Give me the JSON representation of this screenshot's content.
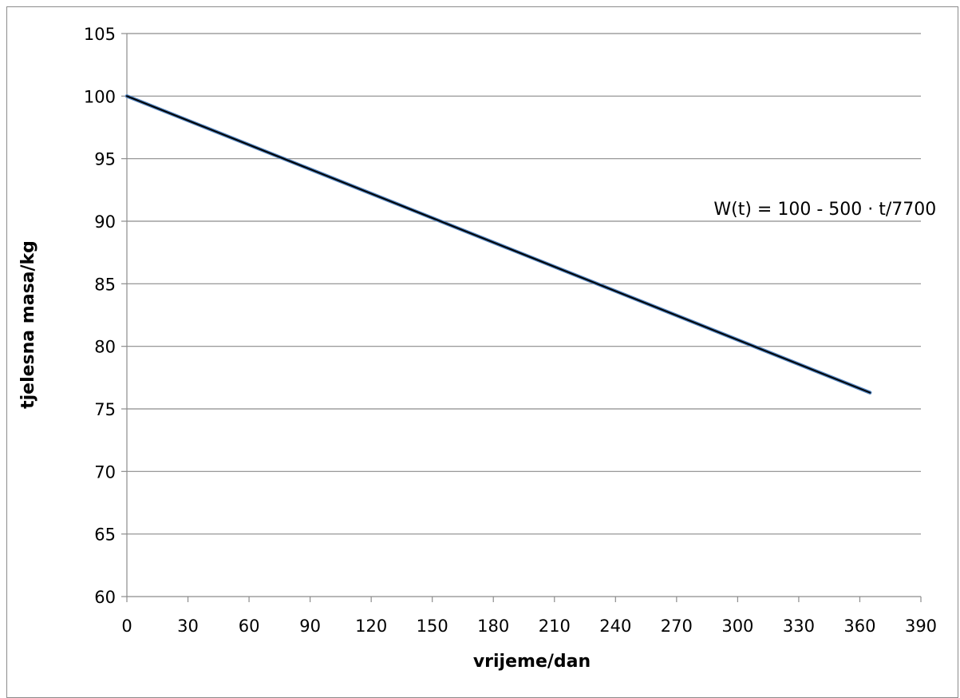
{
  "chart_data": {
    "type": "line",
    "title": "",
    "xlabel": "vrijeme/dan",
    "ylabel": "tjelesna masa/kg",
    "xlim": [
      0,
      390
    ],
    "ylim": [
      60,
      105
    ],
    "x_ticks": [
      0,
      30,
      60,
      90,
      120,
      150,
      180,
      210,
      240,
      270,
      300,
      330,
      360,
      390
    ],
    "y_ticks": [
      60,
      65,
      70,
      75,
      80,
      85,
      90,
      95,
      100,
      105
    ],
    "grid": "horizontal",
    "series": [
      {
        "x": [
          0,
          365
        ],
        "y": [
          100,
          76.3
        ],
        "color": "#000000",
        "outline_color": "#4f81bd"
      }
    ],
    "annotations": [
      {
        "text": "W(t) = 100 - 500 · t/7700",
        "x": 300,
        "y": 90.5
      }
    ]
  }
}
